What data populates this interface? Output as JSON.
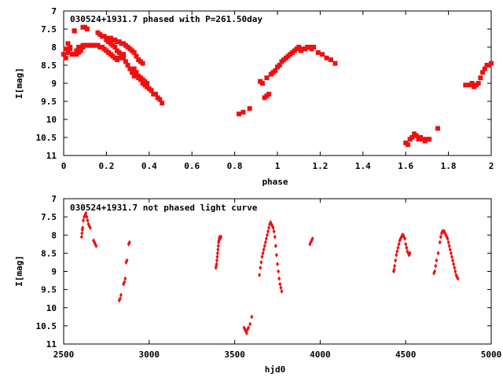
{
  "chart_data": [
    {
      "type": "scatter",
      "title": "030524+1931.7 phased with P=261.50day",
      "xlabel": "phase",
      "ylabel": "I[mag]",
      "xlim": [
        0,
        2
      ],
      "ylim": [
        11,
        7
      ],
      "y_inverted": true,
      "xticks": [
        0,
        0.2,
        0.4,
        0.6,
        0.8,
        1,
        1.2,
        1.4,
        1.6,
        1.8,
        2
      ],
      "xtick_labels": [
        "0",
        "0.2",
        "0.4",
        "0.6",
        "0.8",
        "1",
        "1.2",
        "1.4",
        "1.6",
        "1.8",
        "2"
      ],
      "yticks": [
        7,
        7.5,
        8,
        8.5,
        9,
        9.5,
        10,
        10.5,
        11
      ],
      "ytick_labels": [
        "7",
        "7.5",
        "8",
        "8.5",
        "9",
        "9.5",
        "10",
        "10.5",
        "11"
      ],
      "marker": "filled-square",
      "color": "#ee1111",
      "x": [
        0.0,
        0.01,
        0.02,
        0.03,
        0.04,
        0.05,
        0.06,
        0.07,
        0.08,
        0.09,
        0.1,
        0.11,
        0.12,
        0.13,
        0.14,
        0.15,
        0.16,
        0.17,
        0.18,
        0.19,
        0.2,
        0.21,
        0.22,
        0.23,
        0.24,
        0.25,
        0.26,
        0.27,
        0.28,
        0.01,
        0.02,
        0.03,
        0.04,
        0.05,
        0.06,
        0.07,
        0.08,
        0.09,
        0.05,
        0.09,
        0.1,
        0.11,
        0.16,
        0.17,
        0.18,
        0.19,
        0.2,
        0.21,
        0.22,
        0.23,
        0.24,
        0.25,
        0.26,
        0.27,
        0.28,
        0.29,
        0.3,
        0.31,
        0.32,
        0.33,
        0.34,
        0.35,
        0.36,
        0.37,
        0.2,
        0.21,
        0.22,
        0.23,
        0.24,
        0.25,
        0.26,
        0.27,
        0.28,
        0.29,
        0.3,
        0.31,
        0.32,
        0.33,
        0.34,
        0.35,
        0.36,
        0.37,
        0.38,
        0.39,
        0.33,
        0.34,
        0.35,
        0.36,
        0.37,
        0.38,
        0.39,
        0.4,
        0.41,
        0.42,
        0.43,
        0.44,
        0.45,
        0.46,
        0.82,
        0.84,
        0.87,
        0.92,
        0.93,
        0.94,
        0.95,
        0.96,
        0.97,
        0.98,
        0.99,
        1.0,
        1.01,
        1.02,
        1.03,
        1.04,
        1.05,
        1.06,
        1.07,
        1.08,
        1.09,
        1.1,
        1.11,
        1.12,
        1.13,
        1.14,
        1.15,
        1.16,
        1.17,
        1.19,
        1.21,
        1.23,
        1.25,
        1.27,
        0.92,
        0.95,
        0.97,
        1.6,
        1.61,
        1.62,
        1.63,
        1.64,
        1.65,
        1.66,
        1.67,
        1.68,
        1.69,
        1.7,
        1.71,
        1.75,
        1.88,
        1.9,
        1.91,
        1.92,
        1.93,
        1.94,
        1.95,
        1.96,
        1.97,
        1.98,
        1.99,
        2.0
      ],
      "y": [
        8.2,
        8.05,
        7.9,
        8.0,
        8.2,
        7.55,
        8.1,
        8.0,
        8.0,
        7.95,
        7.95,
        7.95,
        7.95,
        7.95,
        7.95,
        7.95,
        7.95,
        8.0,
        8.0,
        8.05,
        8.1,
        8.15,
        8.2,
        8.25,
        8.3,
        8.35,
        8.3,
        8.25,
        8.2,
        8.3,
        8.15,
        8.05,
        8.2,
        7.55,
        8.2,
        8.15,
        8.1,
        8.0,
        7.55,
        7.45,
        7.45,
        7.5,
        7.6,
        7.65,
        7.7,
        7.7,
        7.75,
        7.75,
        7.75,
        7.8,
        7.8,
        7.85,
        7.85,
        7.9,
        7.9,
        7.95,
        8.0,
        8.05,
        8.1,
        8.15,
        8.25,
        8.35,
        8.4,
        8.45,
        7.8,
        7.85,
        7.9,
        7.95,
        8.0,
        8.1,
        8.15,
        8.2,
        8.3,
        8.4,
        8.5,
        8.6,
        8.7,
        8.8,
        8.8,
        8.85,
        8.85,
        8.9,
        8.95,
        9.0,
        8.6,
        8.7,
        8.8,
        8.9,
        9.0,
        9.05,
        9.1,
        9.15,
        9.2,
        9.3,
        9.3,
        9.4,
        9.45,
        9.55,
        9.85,
        9.8,
        9.7,
        8.95,
        9.0,
        9.4,
        9.35,
        9.3,
        8.75,
        8.7,
        8.65,
        8.55,
        8.5,
        8.4,
        8.35,
        8.3,
        8.25,
        8.2,
        8.15,
        8.1,
        8.05,
        8.0,
        8.1,
        8.05,
        8.05,
        8.0,
        8.0,
        8.05,
        8.0,
        8.15,
        8.2,
        8.3,
        8.35,
        8.45,
        8.95,
        8.85,
        8.75,
        10.65,
        10.7,
        10.55,
        10.5,
        10.4,
        10.45,
        10.55,
        10.5,
        10.55,
        10.6,
        10.55,
        10.55,
        10.25,
        9.05,
        9.05,
        9.0,
        9.1,
        9.05,
        9.0,
        8.85,
        8.7,
        8.6,
        8.5,
        8.5,
        8.45
      ],
      "grid": false
    },
    {
      "type": "scatter",
      "title": "030524+1931.7 not phased light curve",
      "xlabel": "hjd0",
      "ylabel": "I[mag]",
      "xlim": [
        2500,
        5000
      ],
      "ylim": [
        11,
        7
      ],
      "y_inverted": true,
      "xticks": [
        2500,
        3000,
        3500,
        4000,
        4500,
        5000
      ],
      "xtick_labels": [
        "2500",
        "3000",
        "3500",
        "4000",
        "4500",
        "5000"
      ],
      "yticks": [
        7,
        7.5,
        8,
        8.5,
        9,
        9.5,
        10,
        10.5,
        11
      ],
      "ytick_labels": [
        "7",
        "7.5",
        "8",
        "8.5",
        "9",
        "9.5",
        "10",
        "10.5",
        "11"
      ],
      "marker": "small-diamond",
      "color": "#ee1111",
      "x": [
        2605,
        2607,
        2609,
        2611,
        2615,
        2620,
        2625,
        2630,
        2635,
        2640,
        2645,
        2650,
        2655,
        2675,
        2680,
        2685,
        2690,
        2825,
        2830,
        2835,
        2850,
        2855,
        2860,
        2865,
        2870,
        2880,
        2885,
        3390,
        3392,
        3394,
        3396,
        3398,
        3400,
        3402,
        3404,
        3406,
        3408,
        3410,
        3412,
        3415,
        3420,
        3555,
        3560,
        3565,
        3570,
        3575,
        3580,
        3590,
        3600,
        3645,
        3650,
        3655,
        3660,
        3665,
        3670,
        3675,
        3680,
        3685,
        3690,
        3695,
        3700,
        3705,
        3710,
        3715,
        3720,
        3725,
        3730,
        3735,
        3740,
        3745,
        3750,
        3755,
        3760,
        3765,
        3770,
        3775,
        3940,
        3945,
        3950,
        3955,
        4430,
        4432,
        4435,
        4440,
        4445,
        4450,
        4455,
        4460,
        4465,
        4470,
        4475,
        4480,
        4485,
        4490,
        4495,
        4500,
        4505,
        4510,
        4515,
        4520,
        4525,
        4665,
        4670,
        4675,
        4680,
        4690,
        4700,
        4705,
        4710,
        4715,
        4720,
        4725,
        4730,
        4735,
        4740,
        4745,
        4750,
        4755,
        4760,
        4765,
        4770,
        4775,
        4780,
        4785,
        4790,
        4795,
        4800,
        4805
      ],
      "y": [
        8.05,
        7.95,
        7.85,
        7.8,
        7.6,
        7.5,
        7.45,
        7.4,
        7.5,
        7.6,
        7.7,
        7.75,
        7.8,
        8.15,
        8.2,
        8.25,
        8.3,
        9.8,
        9.75,
        9.65,
        9.35,
        9.3,
        9.2,
        8.75,
        8.7,
        8.25,
        8.2,
        8.9,
        8.85,
        8.8,
        8.7,
        8.6,
        8.5,
        8.4,
        8.3,
        8.2,
        8.15,
        8.1,
        8.05,
        8.1,
        8.05,
        10.55,
        10.6,
        10.65,
        10.7,
        10.6,
        10.55,
        10.45,
        10.25,
        9.1,
        8.9,
        8.75,
        8.6,
        8.5,
        8.4,
        8.3,
        8.2,
        8.1,
        8.0,
        7.9,
        7.8,
        7.7,
        7.65,
        7.7,
        7.75,
        7.8,
        7.9,
        8.05,
        8.3,
        8.55,
        8.8,
        9.0,
        9.2,
        9.35,
        9.45,
        9.55,
        8.25,
        8.2,
        8.15,
        8.1,
        9.0,
        8.95,
        8.85,
        8.7,
        8.55,
        8.45,
        8.35,
        8.25,
        8.15,
        8.1,
        8.05,
        8.0,
        8.0,
        8.05,
        8.1,
        8.25,
        8.35,
        8.45,
        8.5,
        8.55,
        8.5,
        9.05,
        9.0,
        8.85,
        8.7,
        8.5,
        8.2,
        8.05,
        7.95,
        7.9,
        7.9,
        7.9,
        7.95,
        8.0,
        8.05,
        8.1,
        8.2,
        8.3,
        8.4,
        8.5,
        8.6,
        8.7,
        8.8,
        8.9,
        9.0,
        9.1,
        9.15,
        9.2
      ],
      "grid": false
    }
  ]
}
